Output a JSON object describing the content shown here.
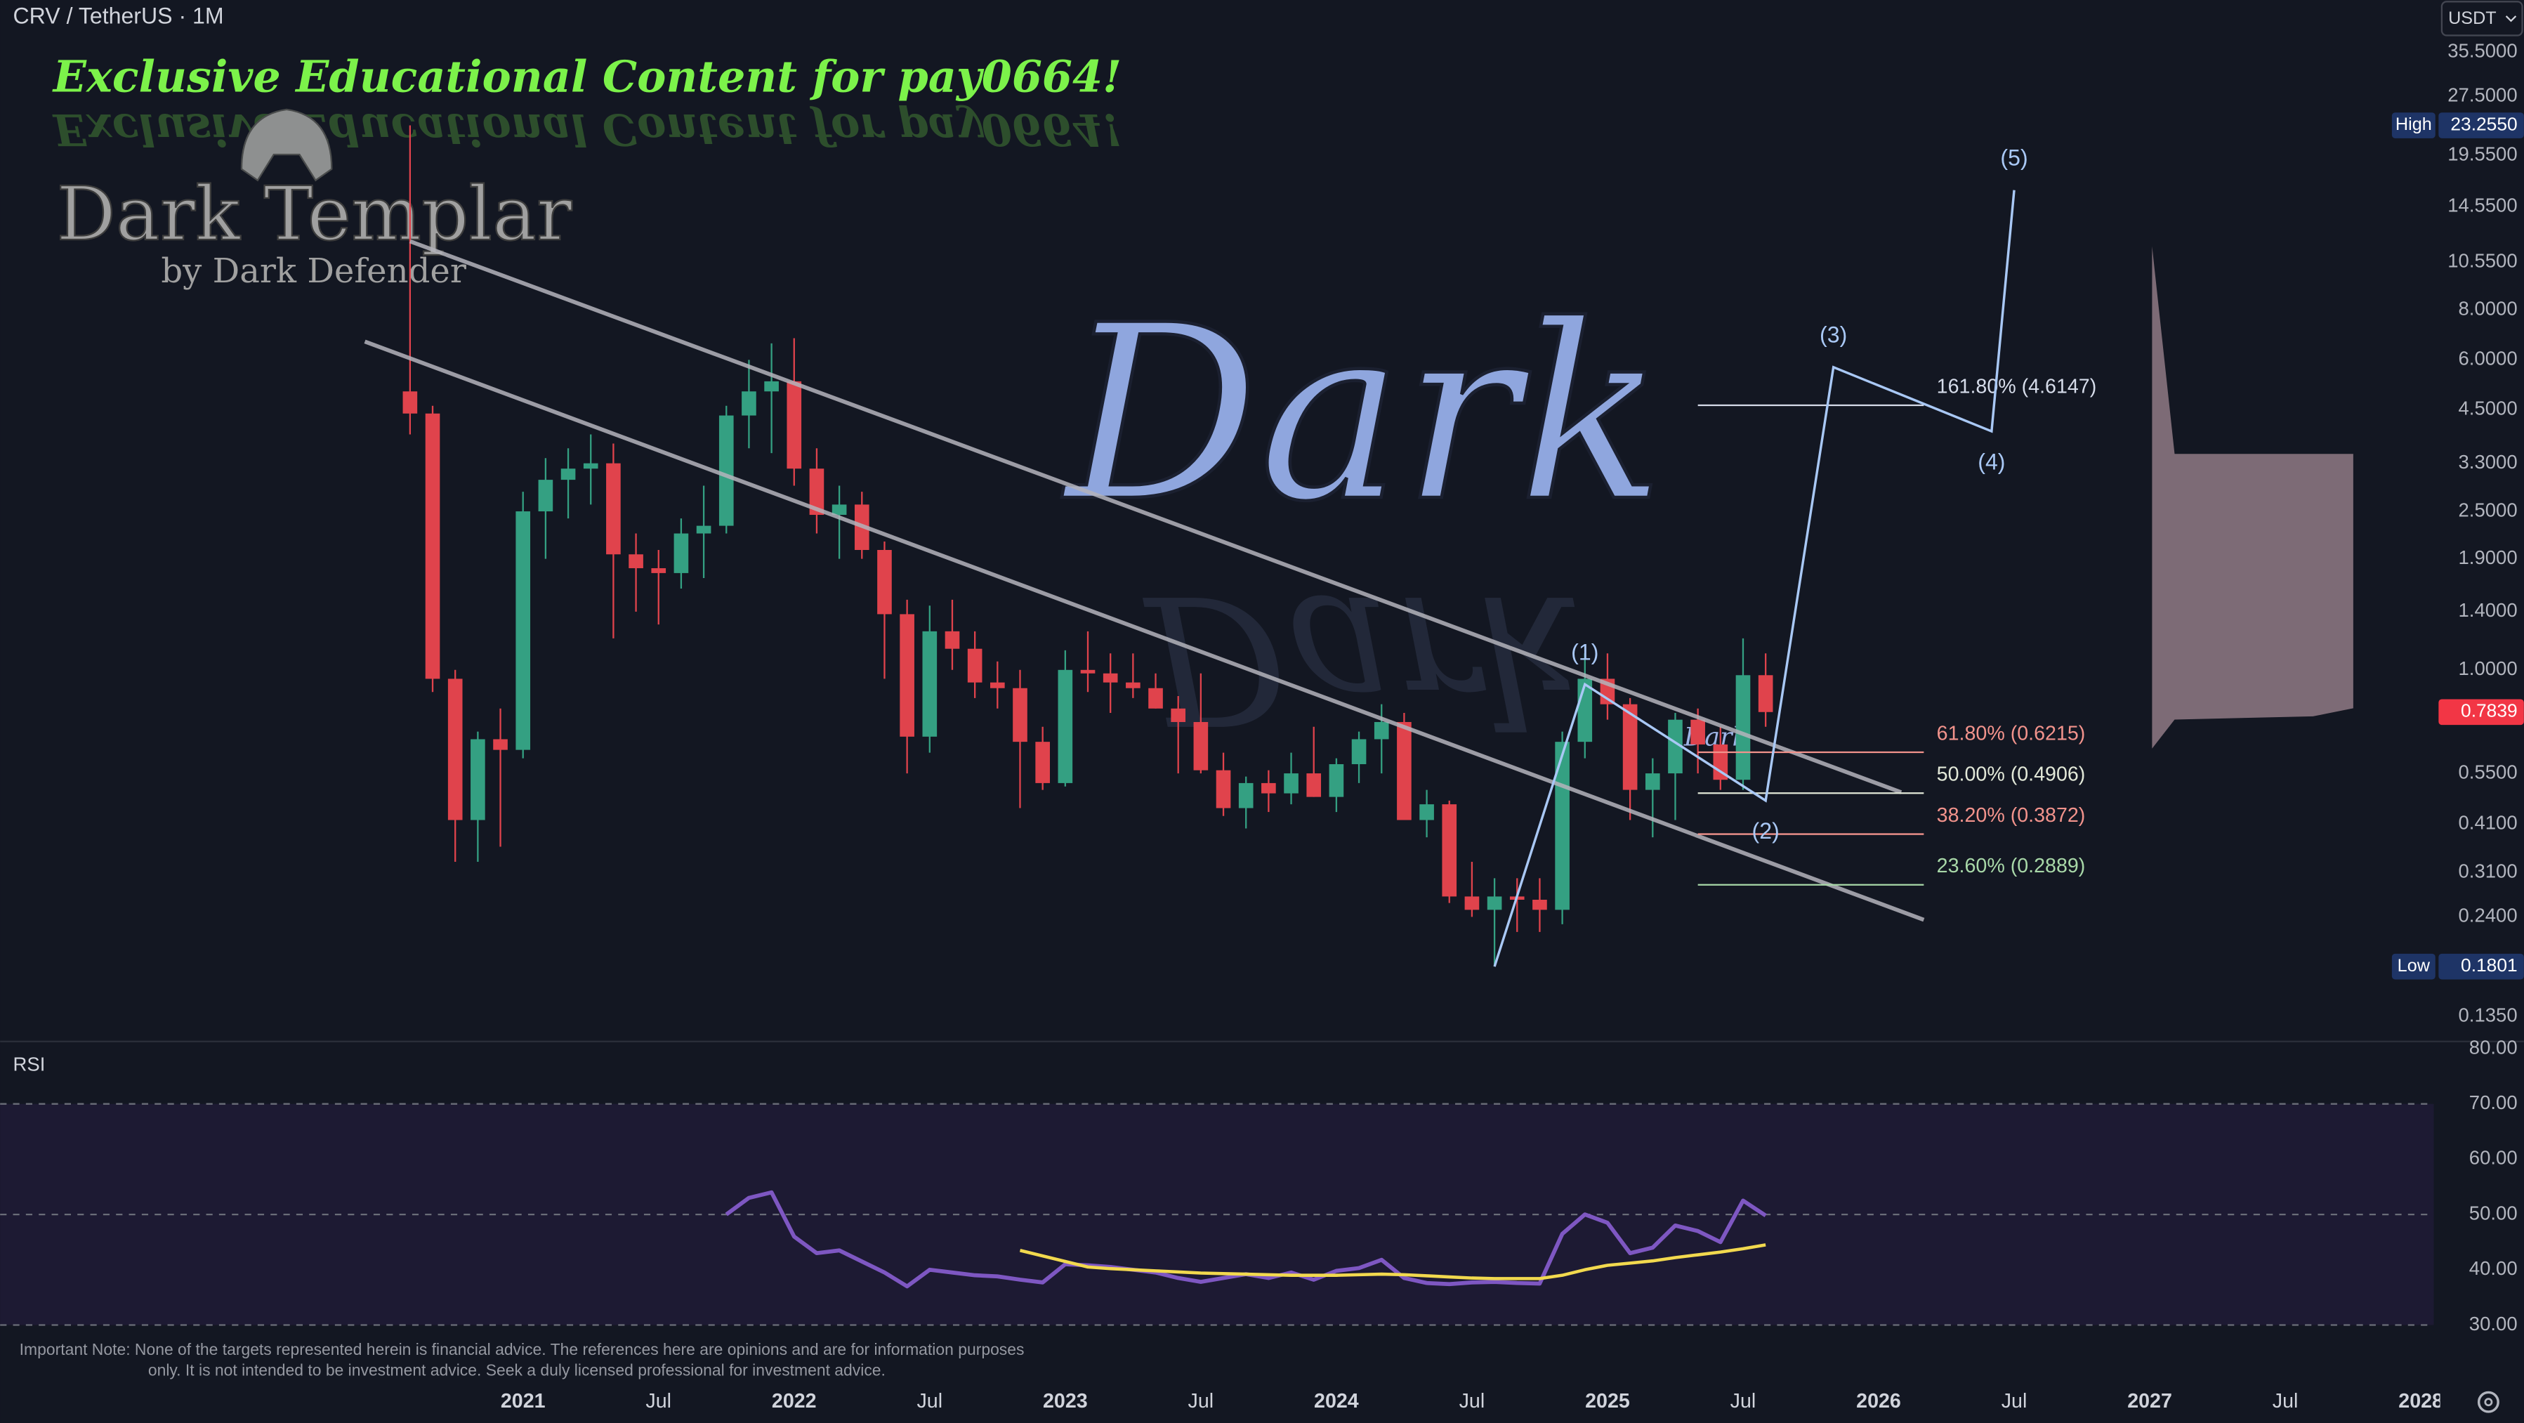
{
  "chart_data": {
    "type": "candlestick",
    "title": "CRV / TetherUS · 1M",
    "currency": "USDT",
    "log_scale": true,
    "up_color": "#34a082",
    "down_color": "#e0434c",
    "x": [
      "2020-08",
      "2020-09",
      "2020-10",
      "2020-11",
      "2020-12",
      "2021-01",
      "2021-02",
      "2021-03",
      "2021-04",
      "2021-05",
      "2021-06",
      "2021-07",
      "2021-08",
      "2021-09",
      "2021-10",
      "2021-11",
      "2021-12",
      "2022-01",
      "2022-02",
      "2022-03",
      "2022-04",
      "2022-05",
      "2022-06",
      "2022-07",
      "2022-08",
      "2022-09",
      "2022-10",
      "2022-11",
      "2022-12",
      "2023-01",
      "2023-02",
      "2023-03",
      "2023-04",
      "2023-05",
      "2023-06",
      "2023-07",
      "2023-08",
      "2023-09",
      "2023-10",
      "2023-11",
      "2023-12",
      "2024-01",
      "2024-02",
      "2024-03",
      "2024-04",
      "2024-05",
      "2024-06",
      "2024-07",
      "2024-08",
      "2024-09",
      "2024-10",
      "2024-11",
      "2024-12",
      "2025-01",
      "2025-02",
      "2025-03",
      "2025-04",
      "2025-05",
      "2025-06",
      "2025-07",
      "2025-08"
    ],
    "open": [
      5.0,
      4.4,
      0.95,
      0.42,
      0.67,
      0.63,
      2.5,
      3.0,
      3.2,
      3.3,
      1.95,
      1.8,
      1.75,
      2.2,
      2.3,
      4.35,
      5.0,
      5.3,
      3.2,
      2.45,
      2.6,
      2.0,
      1.38,
      0.68,
      1.25,
      1.13,
      0.93,
      0.9,
      0.66,
      0.52,
      1.0,
      0.98,
      0.93,
      0.9,
      0.8,
      0.74,
      0.56,
      0.45,
      0.52,
      0.49,
      0.55,
      0.48,
      0.58,
      0.67,
      0.74,
      0.42,
      0.46,
      0.27,
      0.25,
      0.27,
      0.265,
      0.25,
      0.66,
      0.95,
      0.82,
      0.5,
      0.55,
      0.75,
      0.65,
      0.53,
      0.97
    ],
    "high": [
      23.255,
      4.6,
      1.0,
      0.7,
      0.8,
      2.8,
      3.4,
      3.6,
      3.9,
      3.7,
      2.2,
      2.0,
      2.4,
      2.9,
      4.6,
      6.0,
      6.6,
      6.8,
      3.6,
      2.9,
      2.8,
      2.1,
      1.5,
      1.45,
      1.5,
      1.25,
      1.05,
      1.0,
      0.72,
      1.12,
      1.25,
      1.1,
      1.1,
      0.98,
      0.86,
      0.98,
      0.62,
      0.54,
      0.56,
      0.62,
      0.72,
      0.6,
      0.7,
      0.82,
      0.78,
      0.5,
      0.47,
      0.33,
      0.3,
      0.3,
      0.3,
      0.7,
      1.1,
      1.1,
      0.85,
      0.6,
      0.78,
      0.8,
      0.72,
      1.2,
      1.1
    ],
    "low": [
      3.9,
      0.88,
      0.33,
      0.33,
      0.36,
      0.6,
      1.9,
      2.4,
      2.6,
      1.2,
      1.4,
      1.3,
      1.6,
      1.7,
      2.2,
      3.6,
      3.5,
      2.9,
      2.2,
      1.9,
      1.9,
      0.95,
      0.55,
      0.62,
      1.0,
      0.85,
      0.8,
      0.45,
      0.5,
      0.51,
      0.88,
      0.78,
      0.85,
      0.8,
      0.55,
      0.55,
      0.43,
      0.4,
      0.44,
      0.46,
      0.48,
      0.44,
      0.52,
      0.55,
      0.42,
      0.38,
      0.26,
      0.24,
      0.1801,
      0.22,
      0.22,
      0.23,
      0.6,
      0.75,
      0.42,
      0.38,
      0.42,
      0.55,
      0.5,
      0.5,
      0.72
    ],
    "close": [
      4.4,
      0.95,
      0.42,
      0.67,
      0.63,
      2.5,
      3.0,
      3.2,
      3.3,
      1.95,
      1.8,
      1.75,
      2.2,
      2.3,
      4.35,
      5.0,
      5.3,
      3.2,
      2.45,
      2.6,
      2.0,
      1.38,
      0.68,
      1.25,
      1.13,
      0.93,
      0.9,
      0.66,
      0.52,
      1.0,
      0.98,
      0.93,
      0.9,
      0.8,
      0.74,
      0.56,
      0.45,
      0.52,
      0.49,
      0.55,
      0.48,
      0.58,
      0.67,
      0.74,
      0.42,
      0.46,
      0.27,
      0.25,
      0.27,
      0.265,
      0.25,
      0.66,
      0.95,
      0.82,
      0.5,
      0.55,
      0.75,
      0.65,
      0.53,
      0.97,
      0.7839
    ],
    "xlim": [
      "2019-02",
      "2028-01"
    ],
    "xticks": [
      {
        "value": "2021-01",
        "label": "2021"
      },
      {
        "value": "2021-07",
        "label": "Jul"
      },
      {
        "value": "2022-01",
        "label": "2022"
      },
      {
        "value": "2022-07",
        "label": "Jul"
      },
      {
        "value": "2023-01",
        "label": "2023"
      },
      {
        "value": "2023-07",
        "label": "Jul"
      },
      {
        "value": "2024-01",
        "label": "2024"
      },
      {
        "value": "2024-07",
        "label": "Jul"
      },
      {
        "value": "2025-01",
        "label": "2025"
      },
      {
        "value": "2025-07",
        "label": "Jul"
      },
      {
        "value": "2026-01",
        "label": "2026"
      },
      {
        "value": "2026-07",
        "label": "Jul"
      },
      {
        "value": "2027-01",
        "label": "2027"
      },
      {
        "value": "2027-07",
        "label": "Jul"
      },
      {
        "value": "2028-01",
        "label": "2028"
      }
    ],
    "ylim": [
      0.119,
      48
    ],
    "yticks": [
      {
        "value": 35.5,
        "label": "35.5000"
      },
      {
        "value": 27.5,
        "label": "27.5000"
      },
      {
        "value": 19.55,
        "label": "19.5500"
      },
      {
        "value": 14.55,
        "label": "14.5500"
      },
      {
        "value": 10.55,
        "label": "10.5500"
      },
      {
        "value": 8,
        "label": "8.0000"
      },
      {
        "value": 6,
        "label": "6.0000"
      },
      {
        "value": 4.5,
        "label": "4.5000"
      },
      {
        "value": 3.3,
        "label": "3.3000"
      },
      {
        "value": 2.5,
        "label": "2.5000"
      },
      {
        "value": 1.9,
        "label": "1.9000"
      },
      {
        "value": 1.4,
        "label": "1.4000"
      },
      {
        "value": 1,
        "label": "1.0000"
      },
      {
        "value": 0.55,
        "label": "0.5500"
      },
      {
        "value": 0.41,
        "label": "0.4100"
      },
      {
        "value": 0.31,
        "label": "0.3100"
      },
      {
        "value": 0.24,
        "label": "0.2400"
      },
      {
        "value": 0.135,
        "label": "0.1350"
      }
    ],
    "price_tags": [
      {
        "label": "High",
        "value": 23.255,
        "value_label": "23.2550",
        "color": "#1e3466"
      },
      {
        "value": 0.7839,
        "color": "#f23645"
      },
      {
        "label": "Low",
        "value": 0.1801,
        "value_label": "0.1801",
        "color": "#1e3466"
      }
    ],
    "trend_lines": [
      {
        "x": [
          "2020-08",
          "2026-02"
        ],
        "values": [
          11.9,
          0.493
        ],
        "color": "#b4b4bc"
      },
      {
        "x": [
          "2020-06",
          "2026-03"
        ],
        "values": [
          6.67,
          0.236
        ],
        "color": "#b4b4bc"
      }
    ],
    "fib_x": [
      "2025-05",
      "2026-03"
    ],
    "fib_levels": [
      {
        "label": "161.80% (4.6147)",
        "value": 4.6147,
        "color": "#d6dcea"
      },
      {
        "label": "61.80% (0.6215)",
        "value": 0.6215,
        "color": "#f2938c"
      },
      {
        "label": "50.00% (0.4906)",
        "value": 0.4906,
        "color": "#e2e8d8"
      },
      {
        "label": "38.20% (0.3872)",
        "value": 0.3872,
        "color": "#f2938c"
      },
      {
        "label": "23.60% (0.2889)",
        "value": 0.2889,
        "color": "#a8d8a8"
      }
    ],
    "waves": {
      "color": "#a9c8f5",
      "x": [
        "2024-08",
        "2024-12",
        "2025-08",
        "2025-11",
        "2026-06",
        "2026-07"
      ],
      "values": [
        0.1801,
        0.92,
        0.47,
        5.75,
        3.97,
        16
      ],
      "labels": [
        null,
        "(1)",
        "(2)",
        "(3)",
        "(4)",
        "(5)"
      ]
    },
    "rsi": {
      "title": "RSI",
      "color": "#7e57c2",
      "ma_color": "#f2d94e",
      "ylim": [
        28,
        81
      ],
      "yticks": [
        {
          "value": 80,
          "label": "80.00"
        },
        {
          "value": 70,
          "label": "70.00"
        },
        {
          "value": 60,
          "label": "60.00"
        },
        {
          "value": 50,
          "label": "50.00"
        },
        {
          "value": 40,
          "label": "40.00"
        },
        {
          "value": 30,
          "label": "30.00"
        }
      ],
      "band": [
        30,
        70
      ],
      "levels": [
        70,
        50,
        30
      ],
      "values": [
        null,
        null,
        null,
        null,
        null,
        null,
        null,
        null,
        null,
        null,
        null,
        null,
        null,
        null,
        50,
        53,
        54,
        46,
        43,
        43.5,
        41.5,
        39.5,
        37,
        40,
        39.5,
        39,
        38.8,
        38.2,
        37.7,
        41,
        40.8,
        40.5,
        40,
        39.5,
        38.5,
        37.8,
        38.5,
        39.2,
        38.5,
        39.5,
        38.2,
        39.8,
        40.3,
        41.8,
        38.5,
        37.6,
        37.4,
        37.7,
        37.8,
        37.6,
        37.5,
        46.5,
        50,
        48.5,
        43,
        44,
        48,
        47,
        45,
        52.5,
        49.8
      ],
      "ma_values": [
        null,
        null,
        null,
        null,
        null,
        null,
        null,
        null,
        null,
        null,
        null,
        null,
        null,
        null,
        null,
        null,
        null,
        null,
        null,
        null,
        null,
        null,
        null,
        null,
        null,
        null,
        null,
        43.5,
        42.5,
        41.5,
        40.5,
        40.2,
        40,
        39.8,
        39.6,
        39.4,
        39.3,
        39.2,
        39.1,
        39,
        39,
        39,
        39.1,
        39.2,
        39.1,
        38.9,
        38.7,
        38.5,
        38.4,
        38.4,
        38.4,
        39,
        40,
        40.8,
        41.2,
        41.6,
        42.2,
        42.7,
        43.2,
        43.8,
        44.5
      ]
    }
  },
  "branding": {
    "tagline": "Exclusive Educational Content for pay0664!",
    "name": "Dark Templar",
    "byline": "by Dark Defender",
    "watermark": "Dark"
  },
  "note": [
    "Important Note: None of the targets represented herein is financial advice. The references here are opinions and are for information purposes",
    "only. It is not intended to be investment advice. Seek a duly licensed professional for investment advice."
  ]
}
